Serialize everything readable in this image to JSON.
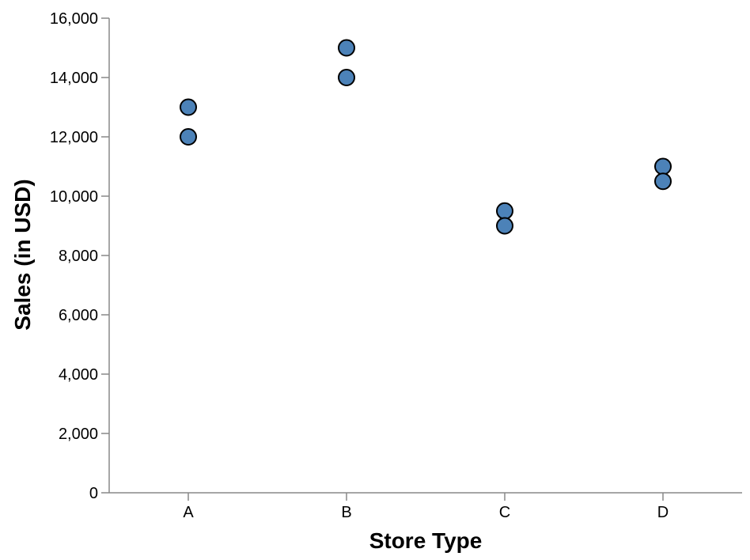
{
  "chart_data": {
    "type": "scatter",
    "xlabel": "Store Type",
    "ylabel": "Sales (in USD)",
    "categories": [
      "A",
      "B",
      "C",
      "D"
    ],
    "points": [
      {
        "x": "A",
        "y": 13000
      },
      {
        "x": "A",
        "y": 12000
      },
      {
        "x": "B",
        "y": 15000
      },
      {
        "x": "B",
        "y": 14000
      },
      {
        "x": "C",
        "y": 9500
      },
      {
        "x": "C",
        "y": 9000
      },
      {
        "x": "D",
        "y": 11000
      },
      {
        "x": "D",
        "y": 10500
      }
    ],
    "ylim": [
      0,
      16000
    ],
    "y_ticks": [
      0,
      2000,
      4000,
      6000,
      8000,
      10000,
      12000,
      14000,
      16000
    ],
    "y_tick_labels": [
      "0",
      "2,000",
      "4,000",
      "6,000",
      "8,000",
      "10,000",
      "12,000",
      "14,000",
      "16,000"
    ],
    "grid": false,
    "legend": "none",
    "colors": {
      "point_fill": "#4C82B8",
      "point_stroke": "#000000",
      "axis": "#888888"
    }
  }
}
